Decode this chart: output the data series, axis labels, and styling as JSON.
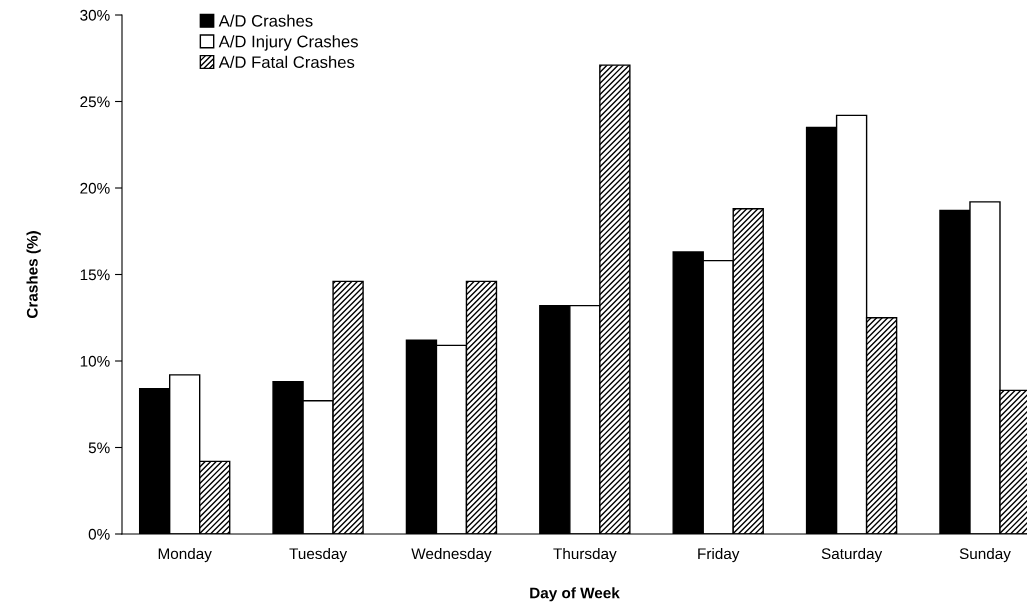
{
  "chart_data": {
    "type": "bar",
    "xlabel": "Day of Week",
    "ylabel": "Crashes (%)",
    "categories": [
      "Monday",
      "Tuesday",
      "Wednesday",
      "Thursday",
      "Friday",
      "Saturday",
      "Sunday"
    ],
    "series": [
      {
        "name": "A/D Crashes",
        "color": "#000000",
        "values": [
          8.4,
          8.8,
          11.2,
          13.2,
          16.3,
          23.5,
          18.7
        ]
      },
      {
        "name": "A/D Injury Crashes",
        "color": "#ffffff",
        "values": [
          9.2,
          7.7,
          10.9,
          13.2,
          15.8,
          24.2,
          19.2
        ]
      },
      {
        "name": "A/D Fatal Crashes",
        "color": "#000000",
        "values": [
          4.2,
          14.6,
          14.6,
          27.1,
          18.8,
          12.5,
          8.3
        ]
      }
    ],
    "ylim": [
      0,
      30
    ],
    "yticks": [
      {
        "value": 0,
        "label": "0%"
      },
      {
        "value": 5,
        "label": "5%"
      },
      {
        "value": 10,
        "label": "10%"
      },
      {
        "value": 15,
        "label": "15%"
      },
      {
        "value": 20,
        "label": "20%"
      },
      {
        "value": 25,
        "label": "25%"
      },
      {
        "value": 30,
        "label": "30%"
      }
    ],
    "grid": false,
    "legend": "top left"
  }
}
